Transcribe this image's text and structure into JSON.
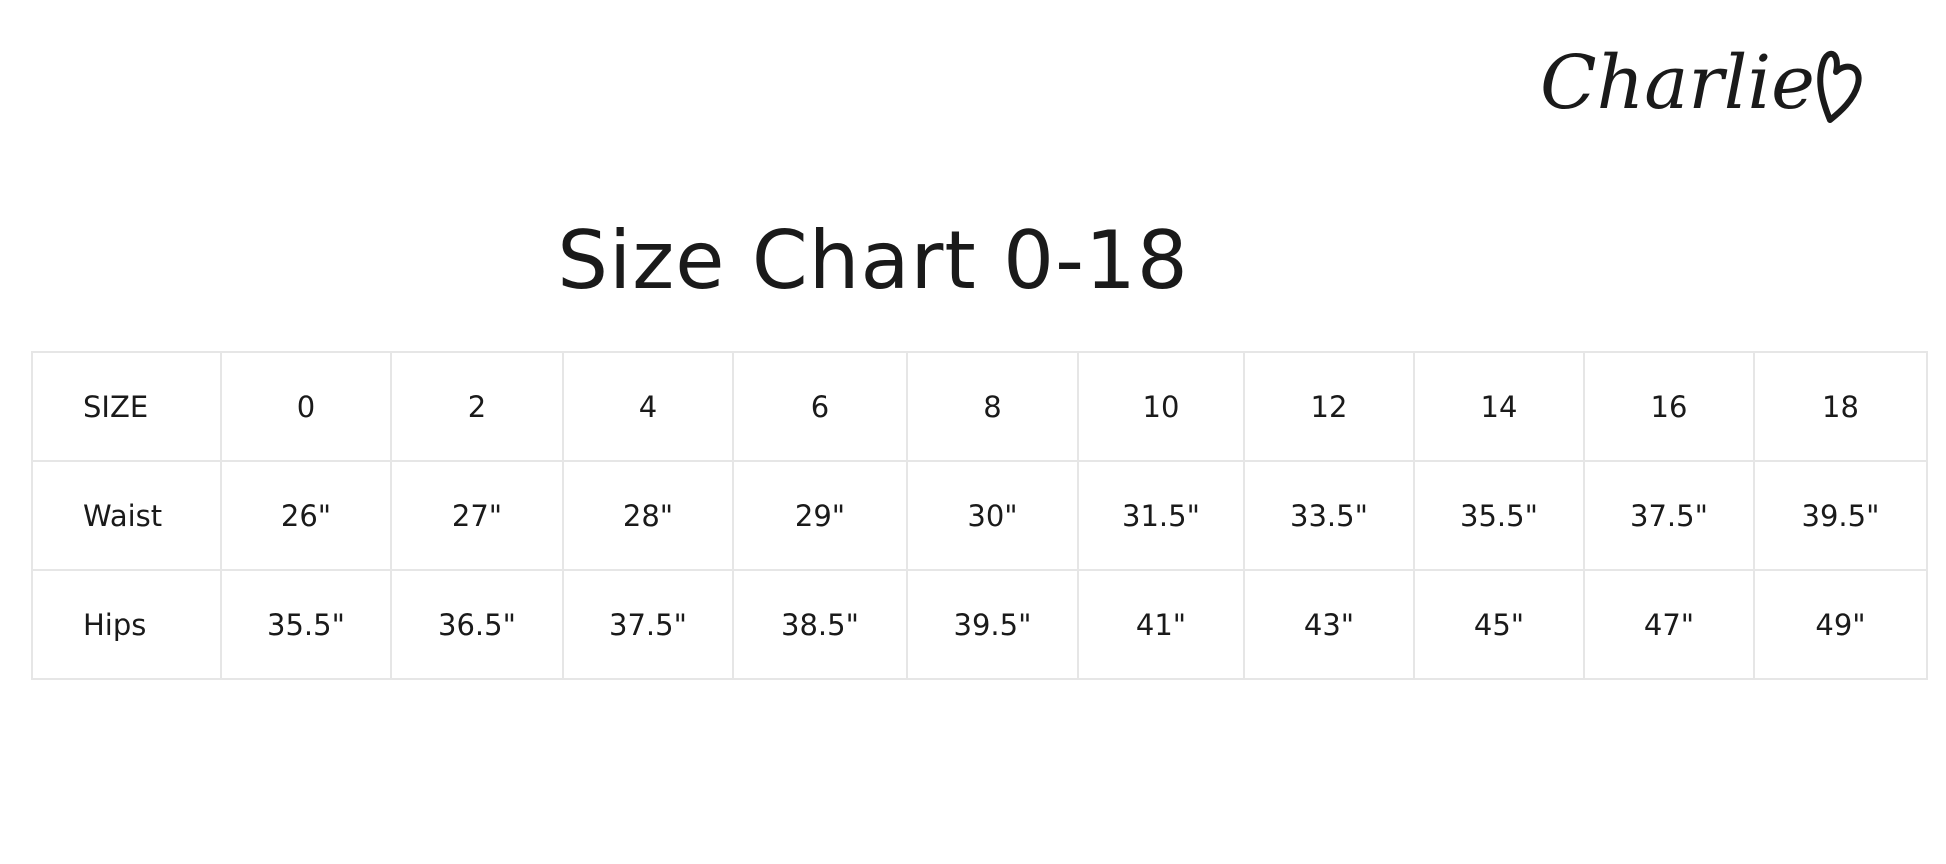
{
  "brand": {
    "logo_text": "Charlie"
  },
  "title": "Size Chart 0-18",
  "table": {
    "rows": [
      {
        "label": "SIZE",
        "values": [
          "0",
          "2",
          "4",
          "6",
          "8",
          "10",
          "12",
          "14",
          "16",
          "18"
        ]
      },
      {
        "label": "Waist",
        "values": [
          "26\"",
          "27\"",
          "28\"",
          "29\"",
          "30\"",
          "31.5\"",
          "33.5\"",
          "35.5\"",
          "37.5\"",
          "39.5\""
        ]
      },
      {
        "label": "Hips",
        "values": [
          "35.5\"",
          "36.5\"",
          "37.5\"",
          "38.5\"",
          "39.5\"",
          "41\"",
          "43\"",
          "45\"",
          "47\"",
          "49\""
        ]
      }
    ]
  }
}
